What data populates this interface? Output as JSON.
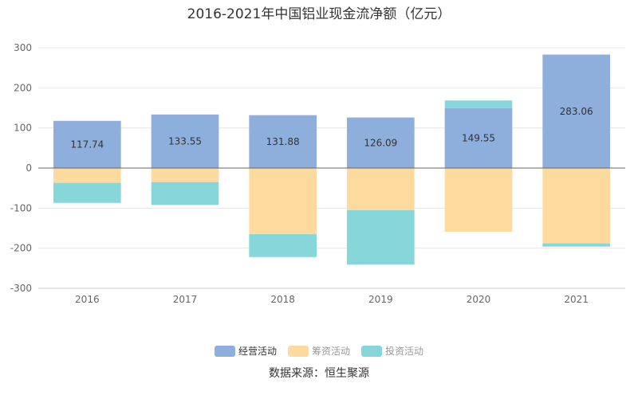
{
  "chart_data": {
    "type": "bar",
    "stacked": true,
    "title": "2016-2021年中国铝业现金流净额（亿元）",
    "categories": [
      "2016",
      "2017",
      "2018",
      "2019",
      "2020",
      "2021"
    ],
    "series": [
      {
        "name": "经营活动",
        "color": "#8eaedc",
        "values": [
          117.74,
          133.55,
          131.88,
          126.09,
          149.55,
          283.06
        ],
        "show_labels": true
      },
      {
        "name": "筹资活动",
        "color": "#fddb9f",
        "values": [
          -37,
          -35,
          -165,
          -105,
          -159,
          -188
        ],
        "show_labels": false
      },
      {
        "name": "投资活动",
        "color": "#87d6d9",
        "values": [
          -50,
          -57,
          -57,
          -136,
          19,
          -8
        ],
        "show_labels": false
      }
    ],
    "yticks": [
      300,
      200,
      100,
      0,
      -100,
      -200,
      -300
    ],
    "ylim": [
      -300,
      300
    ],
    "legend_position": "bottom",
    "grid": true
  },
  "source": "数据来源：恒生聚源"
}
